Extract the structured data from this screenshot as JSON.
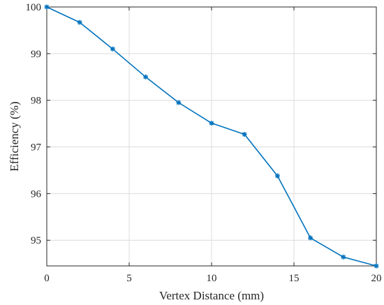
{
  "chart_data": {
    "type": "line",
    "title": "",
    "xlabel": "Vertex Distance (mm)",
    "ylabel": "Efficiency (%)",
    "xlim": [
      0,
      20
    ],
    "ylim": [
      94.45,
      100
    ],
    "x_ticks": [
      0,
      5,
      10,
      15,
      20
    ],
    "y_ticks": [
      95,
      96,
      97,
      98,
      99,
      100
    ],
    "grid": true,
    "legend": "none",
    "series": [
      {
        "color": "#0072bd",
        "marker": "asterisk",
        "x": [
          0,
          2,
          4,
          6,
          8,
          10,
          12,
          14,
          16,
          18,
          20
        ],
        "y": [
          100,
          99.67,
          99.1,
          98.5,
          97.95,
          97.51,
          97.27,
          96.38,
          95.05,
          94.64,
          94.45
        ]
      }
    ]
  }
}
